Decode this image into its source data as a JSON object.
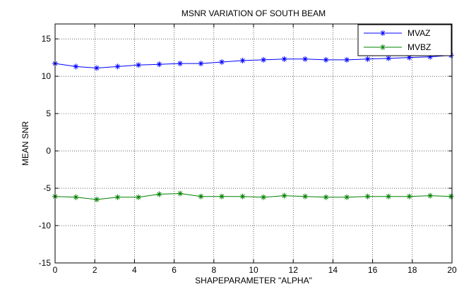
{
  "chart_data": {
    "type": "line",
    "title": "MSNR VARIATION OF SOUTH BEAM",
    "xlabel": "SHAPEPARAMETER \"ALPHA\"",
    "ylabel": "MEAN SNR",
    "xlim": [
      0,
      20
    ],
    "ylim": [
      -15,
      17
    ],
    "xticks": [
      0,
      2,
      4,
      6,
      8,
      10,
      12,
      14,
      16,
      18,
      20
    ],
    "yticks": [
      -15,
      -10,
      -5,
      0,
      5,
      10,
      15
    ],
    "grid": true,
    "legend_position": "top-right",
    "x": [
      0,
      1.05,
      2.1,
      3.15,
      4.2,
      5.25,
      6.3,
      7.35,
      8.4,
      9.45,
      10.5,
      11.55,
      12.6,
      13.65,
      14.7,
      15.75,
      16.8,
      17.85,
      18.9,
      19.95
    ],
    "series": [
      {
        "name": "MVAZ",
        "color": "#0000ff",
        "marker": "asterisk",
        "values": [
          11.7,
          11.3,
          11.1,
          11.3,
          11.5,
          11.6,
          11.7,
          11.7,
          11.9,
          12.1,
          12.2,
          12.3,
          12.3,
          12.2,
          12.2,
          12.3,
          12.4,
          12.5,
          12.6,
          12.8
        ]
      },
      {
        "name": "MVBZ",
        "color": "#008000",
        "marker": "asterisk",
        "values": [
          -6.1,
          -6.2,
          -6.5,
          -6.2,
          -6.2,
          -5.8,
          -5.7,
          -6.1,
          -6.1,
          -6.1,
          -6.2,
          -6.0,
          -6.1,
          -6.2,
          -6.2,
          -6.1,
          -6.1,
          -6.1,
          -6.0,
          -6.1
        ]
      }
    ]
  }
}
